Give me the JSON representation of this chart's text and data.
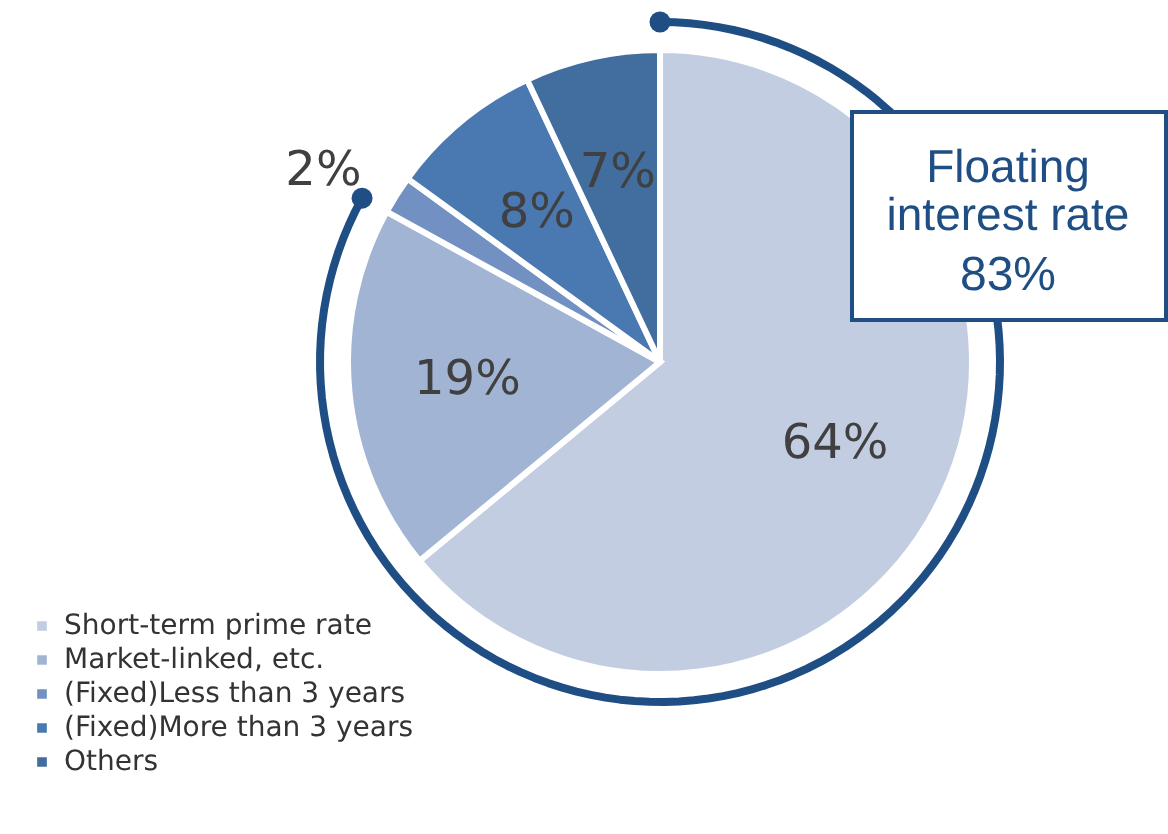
{
  "chart_data": {
    "type": "pie",
    "categories": [
      "Short-term prime rate",
      "Market-linked, etc.",
      "(Fixed)Less than 3 years",
      "(Fixed)More than 3 years",
      "Others"
    ],
    "values": [
      64,
      19,
      2,
      8,
      7
    ],
    "value_labels": [
      "64%",
      "19%",
      "2%",
      "8%",
      "7%"
    ],
    "colors": [
      "#c2cde2",
      "#a2b4d4",
      "#7291c2",
      "#4a78b0",
      "#426d9f"
    ],
    "legend": "bottom left",
    "annotations": [
      "Floating interest rate",
      "83%"
    ]
  }
}
